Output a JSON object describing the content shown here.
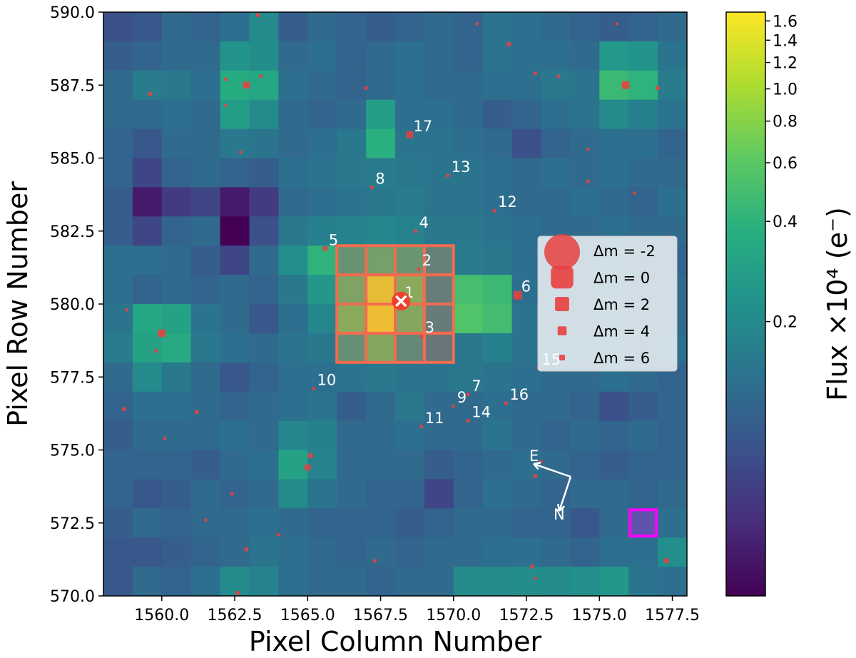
{
  "chart_data": {
    "type": "heatmap",
    "title": "",
    "xlabel": "Pixel Column Number",
    "ylabel": "Pixel Row Number",
    "colorbar_label": "Flux ×10⁴ (e⁻)",
    "colormap": "viridis",
    "xlim": [
      1558,
      1578
    ],
    "ylim": [
      570,
      590
    ],
    "x_ticks": [
      "1560.0",
      "1562.5",
      "1565.0",
      "1567.5",
      "1570.0",
      "1572.5",
      "1575.0",
      "1577.5"
    ],
    "y_ticks": [
      "570.0",
      "572.5",
      "575.0",
      "577.5",
      "580.0",
      "582.5",
      "585.0",
      "587.5",
      "590.0"
    ],
    "colorbar_ticks": [
      "1.6",
      "1.4",
      "1.2",
      "1.0",
      "0.8",
      "0.6",
      "0.4",
      "0.2"
    ],
    "colorbar_tick_values": [
      1.6,
      1.4,
      1.2,
      1.0,
      0.8,
      0.6,
      0.4,
      0.2
    ],
    "colorbar_range": [
      0.03,
      1.7
    ],
    "colorbar_scale": "log",
    "pixel_grid_rows_top_to_bottom": [
      [
        0.08,
        0.09,
        0.12,
        0.11,
        0.13,
        0.2,
        0.1,
        0.12,
        0.11,
        0.1,
        0.11,
        0.12,
        0.11,
        0.14,
        0.13,
        0.12,
        0.11,
        0.1,
        0.11,
        0.12
      ],
      [
        0.1,
        0.11,
        0.12,
        0.12,
        0.24,
        0.21,
        0.12,
        0.13,
        0.11,
        0.12,
        0.13,
        0.12,
        0.11,
        0.14,
        0.13,
        0.13,
        0.12,
        0.26,
        0.24,
        0.14
      ],
      [
        0.12,
        0.16,
        0.15,
        0.13,
        0.36,
        0.33,
        0.13,
        0.12,
        0.11,
        0.12,
        0.13,
        0.12,
        0.12,
        0.13,
        0.13,
        0.15,
        0.14,
        0.45,
        0.4,
        0.16
      ],
      [
        0.12,
        0.12,
        0.13,
        0.12,
        0.28,
        0.2,
        0.12,
        0.11,
        0.12,
        0.28,
        0.13,
        0.13,
        0.12,
        0.1,
        0.11,
        0.13,
        0.14,
        0.2,
        0.17,
        0.14
      ],
      [
        0.11,
        0.09,
        0.12,
        0.12,
        0.15,
        0.14,
        0.12,
        0.13,
        0.15,
        0.38,
        0.14,
        0.14,
        0.13,
        0.12,
        0.08,
        0.11,
        0.12,
        0.13,
        0.13,
        0.11
      ],
      [
        0.11,
        0.07,
        0.11,
        0.12,
        0.11,
        0.1,
        0.13,
        0.14,
        0.15,
        0.16,
        0.15,
        0.14,
        0.14,
        0.13,
        0.12,
        0.13,
        0.12,
        0.13,
        0.12,
        0.12
      ],
      [
        0.1,
        0.04,
        0.06,
        0.07,
        0.04,
        0.06,
        0.12,
        0.13,
        0.14,
        0.15,
        0.16,
        0.14,
        0.14,
        0.13,
        0.12,
        0.12,
        0.13,
        0.12,
        0.11,
        0.13
      ],
      [
        0.1,
        0.07,
        0.11,
        0.12,
        0.03,
        0.08,
        0.15,
        0.17,
        0.18,
        0.19,
        0.18,
        0.15,
        0.15,
        0.14,
        0.13,
        0.12,
        0.12,
        0.13,
        0.12,
        0.12
      ],
      [
        0.13,
        0.13,
        0.12,
        0.1,
        0.07,
        0.12,
        0.22,
        0.4,
        0.33,
        0.45,
        0.36,
        0.21,
        0.16,
        0.15,
        0.13,
        0.12,
        0.12,
        0.13,
        0.12,
        0.11
      ],
      [
        0.13,
        0.11,
        0.12,
        0.11,
        0.12,
        0.11,
        0.15,
        0.25,
        0.5,
        1.4,
        0.6,
        0.19,
        0.5,
        0.45,
        0.13,
        0.12,
        0.12,
        0.13,
        0.11,
        0.12
      ],
      [
        0.14,
        0.33,
        0.3,
        0.14,
        0.12,
        0.09,
        0.13,
        0.19,
        0.6,
        1.55,
        0.55,
        0.18,
        0.55,
        0.48,
        0.14,
        0.12,
        0.12,
        0.13,
        0.12,
        0.12
      ],
      [
        0.16,
        0.3,
        0.34,
        0.15,
        0.13,
        0.12,
        0.14,
        0.15,
        0.3,
        0.55,
        0.25,
        0.16,
        0.15,
        0.17,
        0.14,
        0.13,
        0.13,
        0.13,
        0.12,
        0.13
      ],
      [
        0.12,
        0.2,
        0.15,
        0.12,
        0.09,
        0.11,
        0.13,
        0.13,
        0.14,
        0.15,
        0.14,
        0.14,
        0.15,
        0.14,
        0.13,
        0.12,
        0.12,
        0.13,
        0.12,
        0.11
      ],
      [
        0.11,
        0.13,
        0.13,
        0.12,
        0.11,
        0.12,
        0.13,
        0.14,
        0.1,
        0.12,
        0.15,
        0.12,
        0.12,
        0.13,
        0.12,
        0.12,
        0.11,
        0.08,
        0.1,
        0.11
      ],
      [
        0.1,
        0.12,
        0.12,
        0.12,
        0.13,
        0.12,
        0.19,
        0.17,
        0.12,
        0.12,
        0.13,
        0.12,
        0.12,
        0.14,
        0.12,
        0.11,
        0.12,
        0.11,
        0.12,
        0.11
      ],
      [
        0.11,
        0.11,
        0.11,
        0.1,
        0.12,
        0.13,
        0.3,
        0.18,
        0.12,
        0.12,
        0.12,
        0.1,
        0.11,
        0.12,
        0.13,
        0.12,
        0.11,
        0.1,
        0.11,
        0.11
      ],
      [
        0.11,
        0.09,
        0.1,
        0.12,
        0.11,
        0.12,
        0.2,
        0.14,
        0.12,
        0.11,
        0.11,
        0.07,
        0.11,
        0.13,
        0.12,
        0.11,
        0.12,
        0.12,
        0.11,
        0.12
      ],
      [
        0.1,
        0.12,
        0.11,
        0.12,
        0.12,
        0.13,
        0.12,
        0.11,
        0.11,
        0.11,
        0.1,
        0.11,
        0.12,
        0.12,
        0.11,
        0.11,
        0.09,
        0.12,
        0.13,
        0.13
      ],
      [
        0.09,
        0.09,
        0.1,
        0.11,
        0.12,
        0.14,
        0.13,
        0.12,
        0.11,
        0.12,
        0.11,
        0.12,
        0.12,
        0.13,
        0.13,
        0.12,
        0.11,
        0.13,
        0.13,
        0.22
      ],
      [
        0.09,
        0.12,
        0.11,
        0.13,
        0.2,
        0.18,
        0.13,
        0.12,
        0.12,
        0.11,
        0.12,
        0.12,
        0.2,
        0.2,
        0.21,
        0.2,
        0.22,
        0.25,
        0.14,
        0.13
      ]
    ],
    "aperture_pixels": [
      [
        1566.5,
        581.5
      ],
      [
        1567.5,
        581.5
      ],
      [
        1568.5,
        581.5
      ],
      [
        1569.5,
        581.5
      ],
      [
        1566.5,
        580.5
      ],
      [
        1567.5,
        580.5
      ],
      [
        1568.5,
        580.5
      ],
      [
        1569.5,
        580.5
      ],
      [
        1566.5,
        579.5
      ],
      [
        1567.5,
        579.5
      ],
      [
        1568.5,
        579.5
      ],
      [
        1569.5,
        579.5
      ],
      [
        1566.5,
        578.5
      ],
      [
        1567.5,
        578.5
      ],
      [
        1568.5,
        578.5
      ],
      [
        1569.5,
        578.5
      ]
    ],
    "background_pixel": [
      1576.5,
      572.5
    ],
    "target": {
      "x": 1568.2,
      "y": 580.1,
      "label": "1"
    },
    "labeled_stars": [
      {
        "label": "1",
        "x": 1568.2,
        "y": 580.1,
        "dm": 0
      },
      {
        "label": "2",
        "x": 1568.8,
        "y": 581.2,
        "dm": 6
      },
      {
        "label": "3",
        "x": 1568.9,
        "y": 578.9,
        "dm": 6
      },
      {
        "label": "4",
        "x": 1568.7,
        "y": 582.5,
        "dm": 6
      },
      {
        "label": "5",
        "x": 1565.6,
        "y": 581.9,
        "dm": 4.5
      },
      {
        "label": "6",
        "x": 1572.2,
        "y": 580.3,
        "dm": 2
      },
      {
        "label": "7",
        "x": 1570.5,
        "y": 576.9,
        "dm": 6
      },
      {
        "label": "8",
        "x": 1567.2,
        "y": 584.0,
        "dm": 6
      },
      {
        "label": "9",
        "x": 1570.0,
        "y": 576.5,
        "dm": 6.5
      },
      {
        "label": "10",
        "x": 1565.2,
        "y": 577.1,
        "dm": 6
      },
      {
        "label": "11",
        "x": 1568.9,
        "y": 575.8,
        "dm": 6
      },
      {
        "label": "12",
        "x": 1571.4,
        "y": 583.2,
        "dm": 6
      },
      {
        "label": "13",
        "x": 1569.8,
        "y": 584.4,
        "dm": 6
      },
      {
        "label": "14",
        "x": 1570.5,
        "y": 576.0,
        "dm": 6
      },
      {
        "label": "15",
        "x": 1572.9,
        "y": 577.8,
        "dm": 6.5
      },
      {
        "label": "16",
        "x": 1571.8,
        "y": 576.6,
        "dm": 6
      },
      {
        "label": "17",
        "x": 1568.5,
        "y": 585.8,
        "dm": 3
      }
    ],
    "unlabeled_stars": [
      {
        "x": 1563.3,
        "y": 589.9,
        "dm": 5.5
      },
      {
        "x": 1570.8,
        "y": 589.6,
        "dm": 6.5
      },
      {
        "x": 1575.6,
        "y": 589.6,
        "dm": 6.5
      },
      {
        "x": 1571.9,
        "y": 588.9,
        "dm": 5
      },
      {
        "x": 1562.9,
        "y": 587.5,
        "dm": 3
      },
      {
        "x": 1562.2,
        "y": 587.7,
        "dm": 6
      },
      {
        "x": 1563.4,
        "y": 587.8,
        "dm": 6
      },
      {
        "x": 1559.6,
        "y": 587.2,
        "dm": 5.5
      },
      {
        "x": 1562.2,
        "y": 586.8,
        "dm": 6.5
      },
      {
        "x": 1567.0,
        "y": 587.4,
        "dm": 6
      },
      {
        "x": 1572.8,
        "y": 587.9,
        "dm": 6
      },
      {
        "x": 1573.6,
        "y": 587.8,
        "dm": 6.5
      },
      {
        "x": 1575.9,
        "y": 587.5,
        "dm": 2.5
      },
      {
        "x": 1577.0,
        "y": 587.4,
        "dm": 5.5
      },
      {
        "x": 1562.7,
        "y": 585.2,
        "dm": 6.5
      },
      {
        "x": 1574.6,
        "y": 585.3,
        "dm": 6.5
      },
      {
        "x": 1574.6,
        "y": 584.2,
        "dm": 6
      },
      {
        "x": 1576.2,
        "y": 583.8,
        "dm": 6.5
      },
      {
        "x": 1577.3,
        "y": 582.3,
        "dm": 6.5
      },
      {
        "x": 1558.8,
        "y": 579.8,
        "dm": 6.5
      },
      {
        "x": 1560.0,
        "y": 579.0,
        "dm": 2.5
      },
      {
        "x": 1559.8,
        "y": 578.4,
        "dm": 6
      },
      {
        "x": 1558.7,
        "y": 576.4,
        "dm": 5.5
      },
      {
        "x": 1561.2,
        "y": 576.3,
        "dm": 5.5
      },
      {
        "x": 1560.1,
        "y": 575.4,
        "dm": 6.5
      },
      {
        "x": 1565.1,
        "y": 574.8,
        "dm": 4.5
      },
      {
        "x": 1565.0,
        "y": 574.4,
        "dm": 3.5
      },
      {
        "x": 1572.8,
        "y": 574.1,
        "dm": 5.5
      },
      {
        "x": 1573.0,
        "y": 574.6,
        "dm": 6.5
      },
      {
        "x": 1562.4,
        "y": 573.5,
        "dm": 6
      },
      {
        "x": 1561.5,
        "y": 572.6,
        "dm": 6.5
      },
      {
        "x": 1564.0,
        "y": 572.1,
        "dm": 6.5
      },
      {
        "x": 1562.9,
        "y": 571.6,
        "dm": 5.5
      },
      {
        "x": 1567.3,
        "y": 571.2,
        "dm": 6
      },
      {
        "x": 1572.7,
        "y": 571.0,
        "dm": 5.5
      },
      {
        "x": 1572.8,
        "y": 570.6,
        "dm": 6.5
      },
      {
        "x": 1562.6,
        "y": 570.1,
        "dm": 5.5
      },
      {
        "x": 1577.3,
        "y": 571.2,
        "dm": 4.5
      }
    ],
    "legend": {
      "placement": "right",
      "entries": [
        {
          "label": "Δm =  -2",
          "dm": -2
        },
        {
          "label": "Δm =  0",
          "dm": 0
        },
        {
          "label": "Δm =  2",
          "dm": 2
        },
        {
          "label": "Δm =  4",
          "dm": 4
        },
        {
          "label": "Δm =  6",
          "dm": 6
        }
      ]
    },
    "compass": {
      "east_label": "E",
      "north_label": "N"
    },
    "colors": {
      "star_marker": "#e8413f",
      "aperture": "#f26b50",
      "background_pixel": "#ff00ff",
      "target_cross": "#ffffff",
      "label_text": "#ffffff"
    }
  }
}
